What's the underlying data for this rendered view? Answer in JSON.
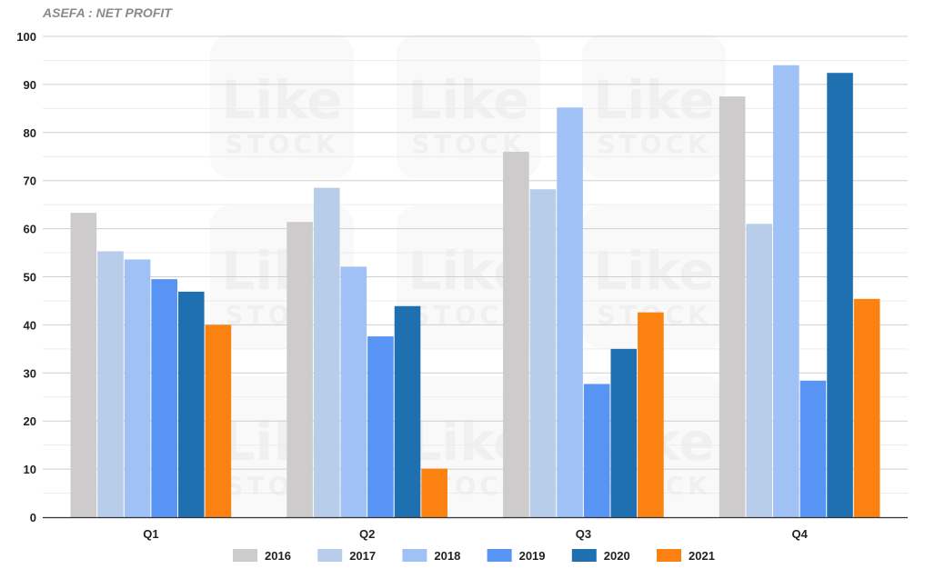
{
  "chart_data": {
    "type": "bar",
    "title": "ASEFA : NET PROFIT",
    "xlabel": "",
    "ylabel": "",
    "categories": [
      "Q1",
      "Q2",
      "Q3",
      "Q4"
    ],
    "series": [
      {
        "name": "2016",
        "color": "#cdcbcc",
        "values": [
          63.3,
          61.4,
          76.0,
          87.5
        ]
      },
      {
        "name": "2017",
        "color": "#b8cde9",
        "values": [
          55.3,
          68.5,
          68.2,
          61.0
        ]
      },
      {
        "name": "2018",
        "color": "#a0c1f5",
        "values": [
          53.6,
          52.1,
          85.2,
          94.0
        ]
      },
      {
        "name": "2019",
        "color": "#5894f4",
        "values": [
          49.5,
          37.6,
          27.7,
          28.4
        ]
      },
      {
        "name": "2020",
        "color": "#1f70b0",
        "values": [
          46.9,
          43.9,
          35.0,
          92.4
        ]
      },
      {
        "name": "2021",
        "color": "#fb8110",
        "values": [
          40.0,
          10.1,
          42.6,
          45.4
        ]
      }
    ],
    "ylim": [
      0,
      100
    ],
    "yticks": [
      0,
      10,
      20,
      30,
      40,
      50,
      60,
      70,
      80,
      90,
      100
    ],
    "grid": true,
    "legend_position": "bottom",
    "watermark": {
      "text_top": "Like",
      "text_bottom": "STOCK"
    }
  }
}
